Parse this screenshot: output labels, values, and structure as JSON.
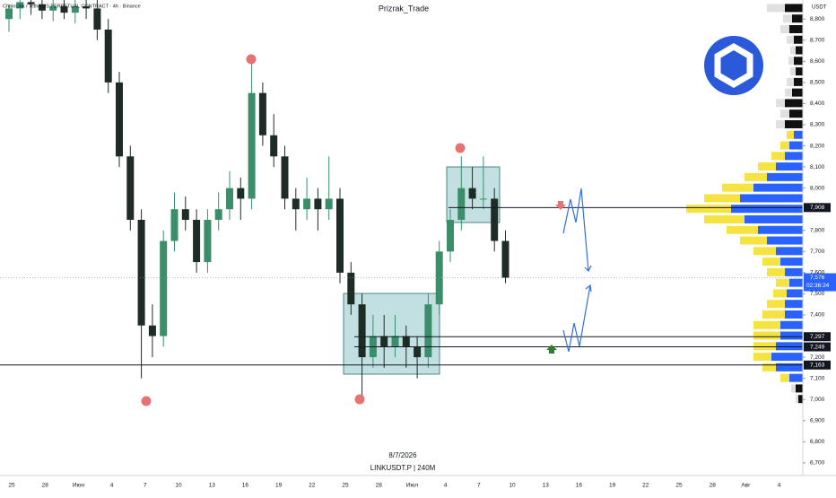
{
  "chart_data": {
    "type": "candlestick",
    "header": "ChainLink / TetherUS PERPETUAL CONTRACT · 4h · Binance",
    "watermark": "Prizrak_Trade",
    "date_caption": "8/7/2026",
    "symbol_caption": "LINKUSDT.P | 240M",
    "currency": "USDT",
    "up_color": "#3a8f6a",
    "down_color": "#1d2d26",
    "ohlc": [
      [
        8800,
        8870,
        8740,
        8850
      ],
      [
        8850,
        8890,
        8800,
        8880
      ],
      [
        8880,
        8890,
        8820,
        8870
      ],
      [
        8870,
        8890,
        8800,
        8840
      ],
      [
        8840,
        8890,
        8790,
        8860
      ],
      [
        8860,
        8890,
        8800,
        8830
      ],
      [
        8830,
        8890,
        8780,
        8860
      ],
      [
        8860,
        8890,
        8800,
        8850
      ],
      [
        8850,
        8890,
        8700,
        8750
      ],
      [
        8750,
        8800,
        8450,
        8500
      ],
      [
        8500,
        8550,
        8100,
        8150
      ],
      [
        8150,
        8200,
        7800,
        7850
      ],
      [
        7850,
        7900,
        7100,
        7350
      ],
      [
        7350,
        7450,
        7200,
        7300
      ],
      [
        7300,
        7800,
        7250,
        7750
      ],
      [
        7750,
        7980,
        7700,
        7900
      ],
      [
        7900,
        7960,
        7800,
        7850
      ],
      [
        7850,
        7900,
        7600,
        7650
      ],
      [
        7650,
        7900,
        7600,
        7850
      ],
      [
        7850,
        7980,
        7800,
        7900
      ],
      [
        7900,
        8080,
        7850,
        8000
      ],
      [
        8000,
        8050,
        7850,
        7950
      ],
      [
        7950,
        8600,
        7900,
        8450
      ],
      [
        8450,
        8500,
        8200,
        8250
      ],
      [
        8250,
        8350,
        8100,
        8150
      ],
      [
        8150,
        8200,
        7900,
        7950
      ],
      [
        7950,
        8000,
        7800,
        7900
      ],
      [
        7900,
        8050,
        7850,
        7950
      ],
      [
        7950,
        8000,
        7800,
        7900
      ],
      [
        7900,
        8150,
        7850,
        7950
      ],
      [
        7950,
        8000,
        7550,
        7600
      ],
      [
        7600,
        7650,
        7400,
        7450
      ],
      [
        7450,
        7500,
        7020,
        7200
      ],
      [
        7200,
        7400,
        7150,
        7300
      ],
      [
        7300,
        7400,
        7150,
        7250
      ],
      [
        7250,
        7400,
        7200,
        7300
      ],
      [
        7300,
        7350,
        7150,
        7250
      ],
      [
        7250,
        7300,
        7100,
        7200
      ],
      [
        7200,
        7500,
        7150,
        7450
      ],
      [
        7450,
        7750,
        7400,
        7700
      ],
      [
        7700,
        7900,
        7650,
        7850
      ],
      [
        7850,
        8150,
        7800,
        8000
      ],
      [
        8000,
        8100,
        7900,
        7950
      ],
      [
        7950,
        8150,
        7900,
        7950
      ],
      [
        7950,
        8000,
        7700,
        7750
      ],
      [
        7750,
        7800,
        7550,
        7576
      ]
    ],
    "ylim": [
      6640,
      8890
    ],
    "yticks": [
      {
        "value": 6700,
        "label": "6,700"
      },
      {
        "value": 6800,
        "label": "6,800"
      },
      {
        "value": 6900,
        "label": "6,900"
      },
      {
        "value": 7000,
        "label": "7,000"
      },
      {
        "value": 7100,
        "label": "7,100"
      },
      {
        "value": 7200,
        "label": "7,200"
      },
      {
        "value": 7400,
        "label": "7,400"
      },
      {
        "value": 7500,
        "label": "7,500"
      },
      {
        "value": 7600,
        "label": "7,600"
      },
      {
        "value": 7700,
        "label": "7,700"
      },
      {
        "value": 7800,
        "label": "7,800"
      },
      {
        "value": 8000,
        "label": "8,000"
      },
      {
        "value": 8100,
        "label": "8,100"
      },
      {
        "value": 8200,
        "label": "8,200"
      },
      {
        "value": 8300,
        "label": "8,300"
      },
      {
        "value": 8400,
        "label": "8,400"
      },
      {
        "value": 8500,
        "label": "8,500"
      },
      {
        "value": 8600,
        "label": "8,600"
      },
      {
        "value": 8700,
        "label": "8,700"
      },
      {
        "value": 8800,
        "label": "8,800"
      }
    ],
    "x_labels": [
      "25",
      "28",
      "Июн",
      "4",
      "7",
      "10",
      "13",
      "16",
      "19",
      "22",
      "25",
      "28",
      "Июл",
      "4",
      "7",
      "10",
      "13",
      "16",
      "19",
      "22",
      "25",
      "28",
      "Авг",
      "4"
    ],
    "levels": [
      {
        "value": 7908,
        "label": "7,908"
      },
      {
        "value": 7297,
        "label": "7,297"
      },
      {
        "value": 7249,
        "label": "7,249"
      },
      {
        "value": 7163,
        "label": "7,163"
      }
    ],
    "last_price": {
      "value": 7576,
      "label": "7,576",
      "countdown": "02:36:24",
      "color": "#2962ff"
    },
    "volume_profile": {
      "prices": [
        7000,
        7050,
        7100,
        7150,
        7200,
        7250,
        7300,
        7350,
        7400,
        7450,
        7500,
        7550,
        7600,
        7650,
        7700,
        7750,
        7800,
        7850,
        7900,
        7950,
        8000,
        8050,
        8100,
        8150,
        8200,
        8250,
        8300,
        8350,
        8400,
        8450,
        8500,
        8550,
        8600,
        8650,
        8700,
        8750,
        8800,
        8850
      ],
      "up": [
        5,
        8,
        15,
        30,
        35,
        30,
        25,
        25,
        20,
        20,
        18,
        15,
        20,
        25,
        30,
        40,
        50,
        65,
        80,
        70,
        55,
        40,
        30,
        20,
        15,
        10,
        20,
        15,
        20,
        12,
        10,
        8,
        10,
        8,
        10,
        15,
        12,
        20
      ],
      "down": [
        3,
        5,
        10,
        15,
        20,
        25,
        30,
        30,
        25,
        20,
        15,
        15,
        20,
        20,
        25,
        30,
        35,
        45,
        50,
        40,
        35,
        25,
        20,
        15,
        10,
        8,
        10,
        10,
        10,
        8,
        8,
        6,
        6,
        6,
        8,
        10,
        10,
        20
      ],
      "value_area": [
        7100,
        8250
      ],
      "colors": {
        "up": "#2962ff",
        "down": "#f5e342",
        "up_outside": "#111111",
        "down_outside": "#e0e0e0"
      }
    }
  }
}
